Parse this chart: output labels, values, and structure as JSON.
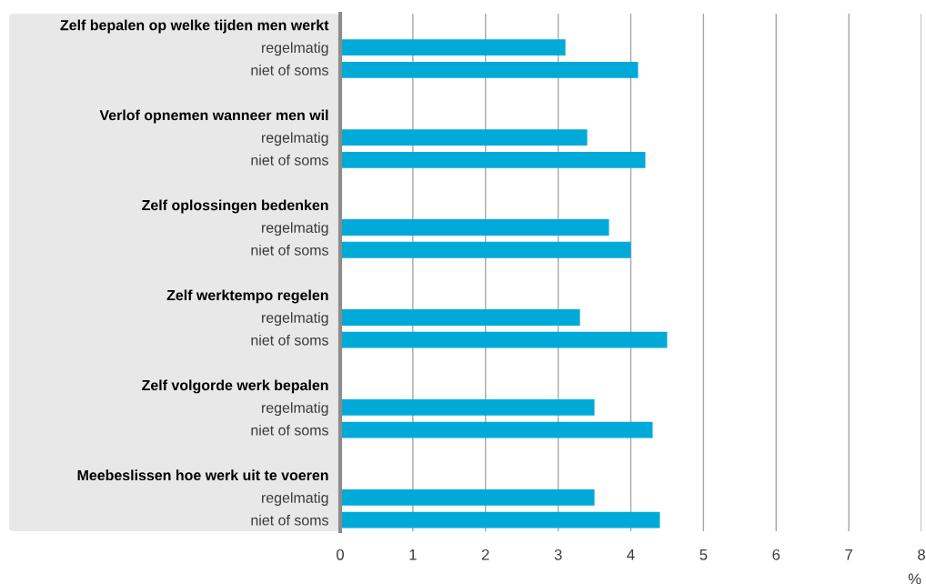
{
  "chart_data": {
    "type": "bar",
    "orientation": "horizontal",
    "categories": [
      "Zelf bepalen op welke tijden men werkt",
      "regelmatig",
      "niet of soms",
      null,
      "Verlof opnemen wanneer men wil",
      "regelmatig",
      "niet of soms",
      null,
      "Zelf oplossingen bedenken",
      "regelmatig",
      "niet of soms",
      null,
      "Zelf werktempo regelen",
      "regelmatig",
      "niet of soms",
      null,
      "Zelf volgorde werk bepalen",
      "regelmatig",
      "niet of soms",
      null,
      "Meebeslissen hoe werk uit te voeren",
      "regelmatig",
      "niet of soms"
    ],
    "values": [
      null,
      3.1,
      4.1,
      null,
      null,
      3.4,
      4.2,
      null,
      null,
      3.7,
      4.0,
      null,
      null,
      3.3,
      4.5,
      null,
      null,
      3.5,
      4.3,
      null,
      null,
      3.5,
      4.4
    ],
    "color": "#00aad8",
    "xlim": [
      0,
      8
    ],
    "xticks": [
      0,
      1,
      2,
      3,
      4,
      5,
      6,
      7,
      8
    ],
    "xlabel": "%",
    "grid": "x"
  }
}
